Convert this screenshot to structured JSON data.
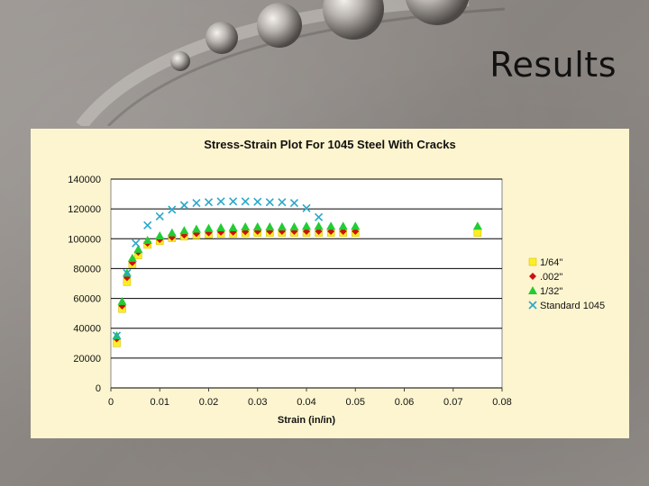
{
  "slide": {
    "title": "Results"
  },
  "chart_data": {
    "type": "scatter",
    "title": "Stress-Strain Plot For 1045 Steel With Cracks",
    "xlabel": "Strain (in/in)",
    "ylabel": "",
    "xlim": [
      0,
      0.08
    ],
    "ylim": [
      0,
      140000
    ],
    "x_ticks": [
      "0",
      "0.01",
      "0.02",
      "0.03",
      "0.04",
      "0.05",
      "0.06",
      "0.07",
      "0.08"
    ],
    "y_ticks": [
      "0",
      "20000",
      "40000",
      "60000",
      "80000",
      "100000",
      "120000",
      "140000"
    ],
    "grid": "horizontal",
    "legend_position": "right",
    "series": [
      {
        "name": "1/64\"",
        "marker": "square",
        "color": "#ffee22",
        "points": [
          [
            0.0012,
            30000
          ],
          [
            0.0023,
            53000
          ],
          [
            0.0033,
            71000
          ],
          [
            0.0044,
            83000
          ],
          [
            0.0056,
            89000
          ],
          [
            0.0075,
            96000
          ],
          [
            0.01,
            98500
          ],
          [
            0.0125,
            100500
          ],
          [
            0.015,
            101500
          ],
          [
            0.0175,
            102500
          ],
          [
            0.02,
            103000
          ],
          [
            0.0225,
            103500
          ],
          [
            0.025,
            103500
          ],
          [
            0.0275,
            103800
          ],
          [
            0.03,
            104000
          ],
          [
            0.0325,
            104000
          ],
          [
            0.035,
            104000
          ],
          [
            0.0375,
            104000
          ],
          [
            0.04,
            104000
          ],
          [
            0.0425,
            104000
          ],
          [
            0.045,
            104000
          ],
          [
            0.0475,
            104000
          ],
          [
            0.05,
            104000
          ],
          [
            0.075,
            104000
          ]
        ]
      },
      {
        "name": ".002\"",
        "marker": "diamond",
        "color": "#cc1111",
        "points": [
          [
            0.0012,
            33000
          ],
          [
            0.0023,
            55000
          ],
          [
            0.0033,
            74000
          ],
          [
            0.0044,
            84000
          ],
          [
            0.0056,
            91000
          ],
          [
            0.0075,
            97000
          ],
          [
            0.01,
            99500
          ],
          [
            0.0125,
            101000
          ],
          [
            0.015,
            102500
          ],
          [
            0.0175,
            103500
          ],
          [
            0.02,
            104000
          ],
          [
            0.0225,
            104500
          ],
          [
            0.025,
            104500
          ],
          [
            0.0275,
            104800
          ],
          [
            0.03,
            105000
          ],
          [
            0.0325,
            105000
          ],
          [
            0.035,
            105000
          ],
          [
            0.0375,
            105000
          ],
          [
            0.04,
            105000
          ],
          [
            0.0425,
            105000
          ],
          [
            0.045,
            105000
          ],
          [
            0.0475,
            105000
          ],
          [
            0.05,
            105000
          ]
        ]
      },
      {
        "name": "1/32\"",
        "marker": "triangle",
        "color": "#22cc33",
        "points": [
          [
            0.0012,
            35000
          ],
          [
            0.0023,
            58000
          ],
          [
            0.0033,
            77000
          ],
          [
            0.0044,
            87000
          ],
          [
            0.0056,
            93000
          ],
          [
            0.0075,
            99000
          ],
          [
            0.01,
            102000
          ],
          [
            0.0125,
            104000
          ],
          [
            0.015,
            105500
          ],
          [
            0.0175,
            106500
          ],
          [
            0.02,
            107000
          ],
          [
            0.0225,
            107500
          ],
          [
            0.025,
            107500
          ],
          [
            0.0275,
            108000
          ],
          [
            0.03,
            108000
          ],
          [
            0.0325,
            108000
          ],
          [
            0.035,
            108000
          ],
          [
            0.0375,
            108000
          ],
          [
            0.04,
            108500
          ],
          [
            0.0425,
            108500
          ],
          [
            0.045,
            108500
          ],
          [
            0.0475,
            108500
          ],
          [
            0.05,
            108500
          ],
          [
            0.075,
            108500
          ]
        ]
      },
      {
        "name": "Standard 1045",
        "marker": "x",
        "color": "#2aa7c9",
        "points": [
          [
            0.0012,
            35000
          ],
          [
            0.0033,
            77000
          ],
          [
            0.0051,
            97000
          ],
          [
            0.0075,
            109000
          ],
          [
            0.01,
            115000
          ],
          [
            0.0125,
            119500
          ],
          [
            0.015,
            122500
          ],
          [
            0.0175,
            124000
          ],
          [
            0.02,
            124500
          ],
          [
            0.0225,
            125000
          ],
          [
            0.025,
            125000
          ],
          [
            0.0275,
            125000
          ],
          [
            0.03,
            124800
          ],
          [
            0.0325,
            124500
          ],
          [
            0.035,
            124500
          ],
          [
            0.0375,
            124000
          ],
          [
            0.04,
            120500
          ],
          [
            0.0425,
            114500
          ]
        ]
      }
    ]
  }
}
